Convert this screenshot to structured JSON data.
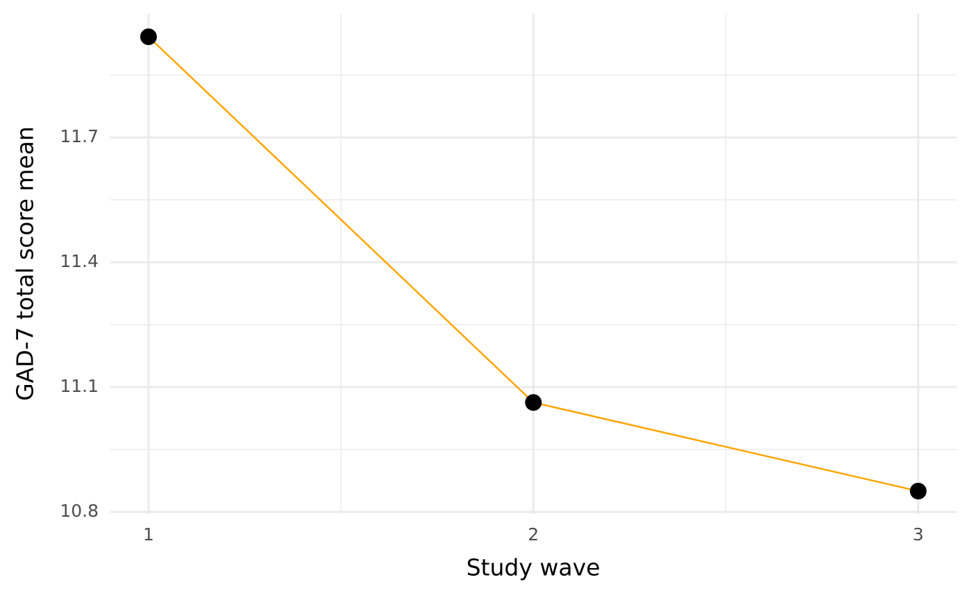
{
  "chart_data": {
    "type": "line",
    "x_label": "Study wave",
    "y_label": "GAD-7 total score mean",
    "x": [
      1,
      2,
      3
    ],
    "series": [
      {
        "color": "#FFA500",
        "marker_color": "#000000",
        "values": [
          11.942,
          11.063,
          10.85
        ]
      }
    ],
    "xlim": [
      0.9,
      3.1
    ],
    "xticks": [
      1,
      2,
      3
    ],
    "ylim": [
      10.795,
      11.997
    ],
    "yticks": [
      10.8,
      11.1,
      11.4,
      11.7
    ],
    "grid": true
  }
}
